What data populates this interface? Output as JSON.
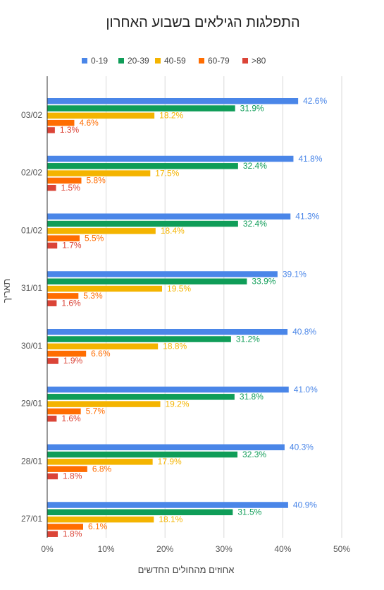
{
  "chart_data": {
    "type": "bar",
    "orientation": "horizontal",
    "title": "התפלגות הגילאים בשבוע האחרון",
    "xlabel": "אחוזים מהחולים החדשים",
    "ylabel": "תאריך",
    "xlim": [
      0,
      50
    ],
    "x_ticks": [
      "0%",
      "10%",
      "20%",
      "30%",
      "40%",
      "50%"
    ],
    "grid": true,
    "legend_position": "top",
    "categories": [
      "03/02",
      "02/02",
      "01/02",
      "31/01",
      "30/01",
      "29/01",
      "28/01",
      "27/01"
    ],
    "series": [
      {
        "name": "0-19",
        "color": "#4a86e8",
        "values": [
          42.6,
          41.8,
          41.3,
          39.1,
          40.8,
          41.0,
          40.3,
          40.9
        ],
        "labels": [
          "42.6%",
          "41.8%",
          "41.3%",
          "39.1%",
          "40.8%",
          "41.0%",
          "40.3%",
          "40.9%"
        ]
      },
      {
        "name": "20-39",
        "color": "#0f9d58",
        "values": [
          31.9,
          32.4,
          32.4,
          33.9,
          31.2,
          31.8,
          32.3,
          31.5
        ],
        "labels": [
          "31.9%",
          "32.4%",
          "32.4%",
          "33.9%",
          "31.2%",
          "31.8%",
          "32.3%",
          "31.5%"
        ]
      },
      {
        "name": "40-59",
        "color": "#f4b400",
        "values": [
          18.2,
          17.5,
          18.4,
          19.5,
          18.8,
          19.2,
          17.9,
          18.1
        ],
        "labels": [
          "18.2%",
          "17.5%",
          "18.4%",
          "19.5%",
          "18.8%",
          "19.2%",
          "17.9%",
          "18.1%"
        ]
      },
      {
        "name": "60-79",
        "color": "#ff6d01",
        "values": [
          4.6,
          5.8,
          5.5,
          5.3,
          6.6,
          5.7,
          6.8,
          6.1
        ],
        "labels": [
          "4.6%",
          "5.8%",
          "5.5%",
          "5.3%",
          "6.6%",
          "5.7%",
          "6.8%",
          "6.1%"
        ]
      },
      {
        "name": ">80",
        "color": "#db4437",
        "values": [
          1.3,
          1.5,
          1.7,
          1.6,
          1.9,
          1.6,
          1.8,
          1.8
        ],
        "labels": [
          "1.3%",
          "1.5%",
          "1.7%",
          "1.6%",
          "1.9%",
          "1.6%",
          "1.8%",
          "1.8%"
        ]
      }
    ]
  }
}
